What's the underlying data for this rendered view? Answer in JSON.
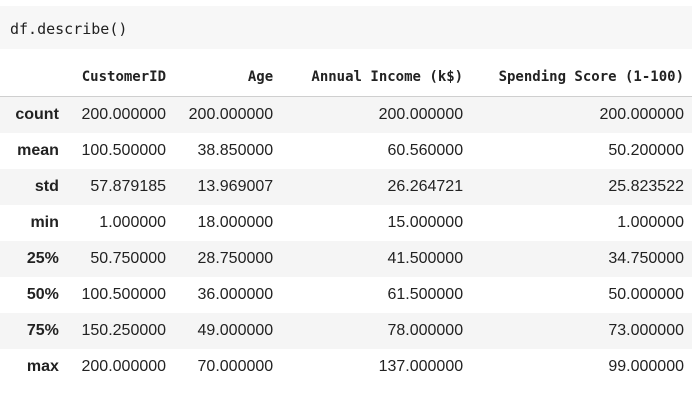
{
  "code_cell": {
    "source": "df.describe()"
  },
  "table": {
    "columns": [
      "CustomerID",
      "Age",
      "Annual Income (k$)",
      "Spending Score (1-100)"
    ],
    "rows": [
      {
        "index": "count",
        "values": [
          "200.000000",
          "200.000000",
          "200.000000",
          "200.000000"
        ]
      },
      {
        "index": "mean",
        "values": [
          "100.500000",
          "38.850000",
          "60.560000",
          "50.200000"
        ]
      },
      {
        "index": "std",
        "values": [
          "57.879185",
          "13.969007",
          "26.264721",
          "25.823522"
        ]
      },
      {
        "index": "min",
        "values": [
          "1.000000",
          "18.000000",
          "15.000000",
          "1.000000"
        ]
      },
      {
        "index": "25%",
        "values": [
          "50.750000",
          "28.750000",
          "41.500000",
          "34.750000"
        ]
      },
      {
        "index": "50%",
        "values": [
          "100.500000",
          "36.000000",
          "61.500000",
          "50.000000"
        ]
      },
      {
        "index": "75%",
        "values": [
          "150.250000",
          "49.000000",
          "78.000000",
          "73.000000"
        ]
      },
      {
        "index": "max",
        "values": [
          "200.000000",
          "70.000000",
          "137.000000",
          "99.000000"
        ]
      }
    ]
  }
}
